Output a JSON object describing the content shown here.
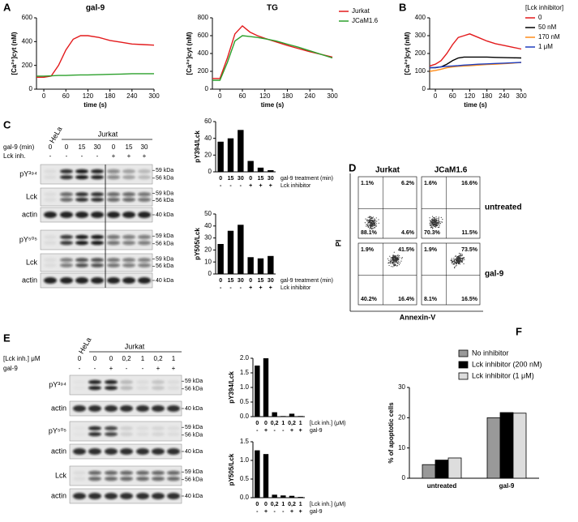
{
  "panel_labels": [
    "A",
    "B",
    "C",
    "D",
    "E",
    "F"
  ],
  "chart_data": [
    {
      "type": "line",
      "title": "gal-9",
      "ylabel": "[Ca²⁺]cyt (nM)",
      "xlabel": "time (s)",
      "x": [
        -20,
        0,
        20,
        40,
        60,
        80,
        100,
        120,
        150,
        180,
        210,
        240,
        270,
        300
      ],
      "xlim": [
        -20,
        300
      ],
      "xticks": [
        0,
        60,
        120,
        180,
        240,
        300
      ],
      "ylim": [
        0,
        600
      ],
      "yticks": [
        0,
        200,
        400,
        600
      ],
      "series": [
        {
          "color": "#e31a1c",
          "values": [
            100,
            100,
            110,
            200,
            330,
            420,
            450,
            450,
            435,
            410,
            395,
            380,
            375,
            370
          ]
        },
        {
          "color": "#2ca02c",
          "values": [
            110,
            110,
            112,
            115,
            115,
            118,
            120,
            120,
            122,
            125,
            127,
            130,
            130,
            130
          ]
        }
      ]
    },
    {
      "type": "line",
      "title": "TG",
      "ylabel": "[Ca²⁺]cyt (nM)",
      "xlabel": "time (s)",
      "x": [
        -20,
        0,
        20,
        40,
        60,
        80,
        100,
        120,
        150,
        180,
        210,
        240,
        270,
        300
      ],
      "xlim": [
        -20,
        300
      ],
      "xticks": [
        0,
        60,
        120,
        180,
        240,
        300
      ],
      "ylim": [
        0,
        800
      ],
      "yticks": [
        0,
        200,
        400,
        600,
        800
      ],
      "series": [
        {
          "name": "Jurkat",
          "color": "#e31a1c",
          "values": [
            120,
            120,
            350,
            620,
            710,
            640,
            600,
            570,
            530,
            490,
            455,
            420,
            390,
            360
          ]
        },
        {
          "name": "JCaM1.6",
          "color": "#2ca02c",
          "values": [
            100,
            100,
            300,
            540,
            600,
            590,
            580,
            565,
            540,
            505,
            470,
            430,
            390,
            350
          ]
        }
      ]
    },
    {
      "type": "line",
      "ylabel": "[Ca²⁺]cyt (nM)",
      "xlabel": "time (s)",
      "legend_title": "[Lck inhibitor]",
      "x": [
        -20,
        0,
        20,
        40,
        60,
        80,
        100,
        120,
        150,
        180,
        210,
        240,
        270,
        300
      ],
      "xlim": [
        -20,
        300
      ],
      "xticks": [
        0,
        60,
        120,
        180,
        240,
        300
      ],
      "ylim": [
        0,
        400
      ],
      "yticks": [
        0,
        100,
        200,
        300,
        400
      ],
      "series": [
        {
          "name": "0",
          "color": "#e31a1c",
          "values": [
            130,
            140,
            160,
            200,
            250,
            290,
            300,
            310,
            290,
            270,
            255,
            245,
            235,
            225
          ]
        },
        {
          "name": "50 nM",
          "color": "#000000",
          "values": [
            120,
            120,
            125,
            140,
            160,
            175,
            180,
            180,
            180,
            180,
            178,
            177,
            176,
            175
          ]
        },
        {
          "name": "170 nM",
          "color": "#ff8c1a",
          "values": [
            100,
            105,
            112,
            120,
            125,
            128,
            130,
            132,
            135,
            138,
            140,
            143,
            146,
            150
          ]
        },
        {
          "name": "1 μM",
          "color": "#1f3fbf",
          "values": [
            120,
            122,
            125,
            128,
            130,
            132,
            135,
            137,
            140,
            142,
            144,
            146,
            148,
            150
          ]
        }
      ]
    },
    {
      "type": "bar",
      "ylabel": "pY394/Lck",
      "color": "#000000",
      "categories": [
        "0",
        "15",
        "30",
        "0",
        "15",
        "30"
      ],
      "categories2": [
        "-",
        "-",
        "-",
        "+",
        "+",
        "+"
      ],
      "row_labels": [
        "gal-9 treatment (min)",
        "Lck inhibitor"
      ],
      "values": [
        36,
        40,
        50,
        13,
        5,
        2
      ],
      "ylim": [
        0,
        60
      ],
      "yticks": [
        0,
        20,
        40,
        60
      ]
    },
    {
      "type": "bar",
      "ylabel": "pY505/Lck",
      "color": "#000000",
      "categories": [
        "0",
        "15",
        "30",
        "0",
        "15",
        "30"
      ],
      "categories2": [
        "-",
        "-",
        "-",
        "+",
        "+",
        "+"
      ],
      "row_labels": [
        "gal-9 treatment (min)",
        "Lck inhibitor"
      ],
      "values": [
        25,
        36,
        41,
        14,
        13,
        15
      ],
      "ylim": [
        0,
        50
      ],
      "yticks": [
        0,
        10,
        20,
        30,
        40,
        50
      ]
    },
    {
      "type": "bar",
      "ylabel": "pY394/Lck",
      "color": "#000000",
      "categories": [
        "0",
        "0",
        "0,2",
        "1",
        "0,2",
        "1"
      ],
      "categories2": [
        "-",
        "+",
        "-",
        "-",
        "+",
        "+"
      ],
      "row_labels": [
        "[Lck inh.] (μM)",
        "gal-9"
      ],
      "values": [
        1.75,
        2.0,
        0.15,
        0.02,
        0.1,
        0.02
      ],
      "ylim": [
        0,
        2
      ],
      "yticks": [
        {
          "value": 0,
          "label": "0.0"
        },
        {
          "value": 0.5,
          "label": "0.5"
        },
        {
          "value": 1,
          "label": "1.0"
        },
        {
          "value": 1.5,
          "label": "1.5"
        },
        {
          "value": 2,
          "label": "2.0"
        }
      ]
    },
    {
      "type": "bar",
      "ylabel": "pY505/Lck",
      "color": "#000000",
      "categories": [
        "0",
        "0",
        "0,2",
        "1",
        "0,2",
        "1"
      ],
      "categories2": [
        "-",
        "+",
        "-",
        "-",
        "+",
        "+"
      ],
      "row_labels": [
        "[Lck inh.] (μM)",
        "gal-9"
      ],
      "values": [
        1.27,
        1.17,
        0.08,
        0.06,
        0.05,
        0.02
      ],
      "ylim": [
        0,
        1.5
      ],
      "yticks": [
        {
          "value": 0,
          "label": "0.0"
        },
        {
          "value": 0.5,
          "label": "0.5"
        },
        {
          "value": 1,
          "label": "1.0"
        },
        {
          "value": 1.5,
          "label": "1.5"
        }
      ]
    },
    {
      "type": "grouped_bar",
      "ylabel": "% of apoptotic cells",
      "categories": [
        "untreated",
        "gal-9"
      ],
      "ylim": [
        0,
        30
      ],
      "yticks": [
        0,
        10,
        20,
        30
      ],
      "series": [
        {
          "name": "No inhibitor",
          "color": "#999999",
          "values": [
            4.5,
            20
          ]
        },
        {
          "name": "Lck inhibitor (200 nM)",
          "color": "#000000",
          "values": [
            6,
            21.7
          ]
        },
        {
          "name": "Lck inhibitor (1 μM)",
          "color": "#dddddd",
          "values": [
            6.7,
            21.5
          ]
        }
      ]
    }
  ],
  "blots": [
    {
      "cell_headers": [
        "HeLa",
        "Jurkat"
      ],
      "condition_rows": [
        {
          "label": "gal-9 (min)",
          "values": [
            "0",
            "0",
            "15",
            "30",
            "0",
            "15",
            "30"
          ]
        },
        {
          "label": "Lck inh.",
          "values": [
            "-",
            "-",
            "-",
            "-",
            "+",
            "+",
            "+"
          ]
        }
      ],
      "rows": [
        {
          "label": "pY³⁹⁴",
          "markers": [
            "59 kDa",
            "56 kDa"
          ]
        },
        {
          "label": "Lck",
          "markers": [
            "59 kDa",
            "56 kDa"
          ]
        },
        {
          "label": "actin",
          "markers": [
            "40 kDa"
          ]
        },
        {
          "label": "pY⁵⁰⁵",
          "markers": [
            "59 kDa",
            "56 kDa"
          ]
        },
        {
          "label": "Lck",
          "markers": [
            "59 kDa",
            "56 kDa"
          ]
        },
        {
          "label": "actin",
          "markers": [
            "40 kDa"
          ]
        }
      ]
    },
    {
      "cell_headers": [
        "HeLa",
        "Jurkat"
      ],
      "condition_rows": [
        {
          "label": "[Lck inh.] μM",
          "values": [
            "0",
            "0",
            "0",
            "0,2",
            "1",
            "0,2",
            "1"
          ]
        },
        {
          "label": "gal-9",
          "values": [
            "-",
            "-",
            "+",
            "-",
            "-",
            "+",
            "+"
          ]
        }
      ],
      "rows": [
        {
          "label": "pY³⁹⁴",
          "markers": [
            "59 kDa",
            "56 kDa"
          ]
        },
        {
          "label": "actin",
          "markers": [
            "40 kDa"
          ]
        },
        {
          "label": "pY⁵⁰⁵",
          "markers": [
            "59 kDa",
            "56 kDa"
          ]
        },
        {
          "label": "actin",
          "markers": [
            "40 kDa"
          ]
        },
        {
          "label": "Lck",
          "markers": [
            "59 kDa",
            "56 kDa"
          ]
        },
        {
          "label": "actin",
          "markers": [
            "40 kDa"
          ]
        }
      ]
    }
  ],
  "flow": {
    "columns": [
      "Jurkat",
      "JCaM1.6"
    ],
    "rows": [
      "untreated",
      "gal-9"
    ],
    "y_label": "PI",
    "x_label": "Annexin-V",
    "quadrants": [
      [
        [
          "1.1%",
          "6.2%",
          "88.1%",
          "4.6%"
        ],
        [
          "1.6%",
          "16.6%",
          "70.3%",
          "11.5%"
        ]
      ],
      [
        [
          "1.9%",
          "41.5%",
          "40.2%",
          "16.4%"
        ],
        [
          "1.9%",
          "73.5%",
          "8.1%",
          "16.5%"
        ]
      ]
    ]
  }
}
